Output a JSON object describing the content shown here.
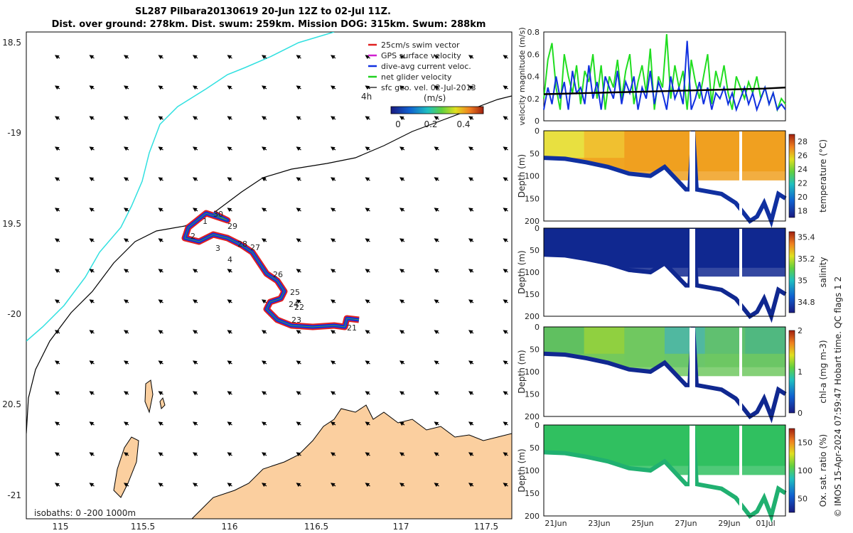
{
  "title_line1": "SL287 Pilbara20130619 20-Jun 12Z to 02-Jul 11Z.",
  "title_line2": "Dist. over ground: 278km. Dist. swum: 259km. Mission DOG: 315km. Swum: 288km",
  "map": {
    "lon_ticks": [
      "115",
      "115.5",
      "116",
      "116.5",
      "117",
      "117.5"
    ],
    "lat_ticks": [
      "18.5",
      "-19",
      "19.5",
      "-20",
      "20.5",
      "-21"
    ],
    "isobath_label": "isobaths: 0 -200 1000m",
    "legend": [
      {
        "label": "25cm/s swim vector",
        "color": "#e02020"
      },
      {
        "label": "GPS surface velocity",
        "color": "#d020d0"
      },
      {
        "label": "dive-avg current veloc.",
        "color": "#1030e0"
      },
      {
        "label": "net glider velocity",
        "color": "#20d020"
      },
      {
        "label": "sfc geo. vel. 02-Jul-2013",
        "color": "#000000"
      }
    ],
    "hours_label": "4h",
    "colorbar_unit": "(m/s)",
    "colorbar_ticks": [
      "0",
      "0.2",
      "0.4"
    ],
    "day_labels": [
      "30",
      "29",
      "1",
      "2",
      "3",
      "28",
      "27",
      "4",
      "26",
      "25",
      "24",
      "22",
      "23",
      "21"
    ],
    "land_color": "#fbcf9f"
  },
  "chart_data": [
    {
      "type": "line",
      "ylabel": "velocity magnitude (m/s)",
      "ylim": [
        0,
        0.8
      ],
      "yticks": [
        "0",
        "0.2",
        "0.4",
        "0.6",
        "0.8"
      ],
      "series": [
        {
          "color": "#20dd20",
          "values": [
            0.2,
            0.55,
            0.7,
            0.3,
            0.1,
            0.6,
            0.4,
            0.25,
            0.5,
            0.15,
            0.45,
            0.35,
            0.6,
            0.2,
            0.5,
            0.1,
            0.4,
            0.3,
            0.55,
            0.2,
            0.45,
            0.6,
            0.15,
            0.35,
            0.5,
            0.25,
            0.65,
            0.1,
            0.4,
            0.3,
            0.78,
            0.2,
            0.5,
            0.3,
            0.45,
            0.1,
            0.55,
            0.35,
            0.2,
            0.4,
            0.6,
            0.15,
            0.45,
            0.3,
            0.5,
            0.25,
            0.1,
            0.4,
            0.3,
            0.2,
            0.35,
            0.25,
            0.4,
            0.2,
            0.3,
            0.15,
            0.25,
            0.1,
            0.2,
            0.15
          ]
        },
        {
          "color": "#1030e0",
          "values": [
            0.1,
            0.3,
            0.15,
            0.4,
            0.2,
            0.35,
            0.1,
            0.45,
            0.25,
            0.3,
            0.15,
            0.5,
            0.2,
            0.35,
            0.1,
            0.4,
            0.3,
            0.2,
            0.45,
            0.15,
            0.35,
            0.25,
            0.4,
            0.1,
            0.3,
            0.2,
            0.45,
            0.15,
            0.35,
            0.25,
            0.1,
            0.4,
            0.2,
            0.3,
            0.15,
            0.72,
            0.1,
            0.2,
            0.35,
            0.15,
            0.3,
            0.1,
            0.25,
            0.2,
            0.3,
            0.15,
            0.25,
            0.1,
            0.2,
            0.3,
            0.15,
            0.25,
            0.1,
            0.2,
            0.3,
            0.15,
            0.25,
            0.1,
            0.15,
            0.1
          ]
        },
        {
          "color": "#000000",
          "values": [
            0.24,
            0.245,
            0.25,
            0.255,
            0.26,
            0.265,
            0.27,
            0.275,
            0.28,
            0.285,
            0.29,
            0.3
          ]
        }
      ]
    },
    {
      "type": "heatmap",
      "ylabel": "Depth (m)",
      "ylim": [
        200,
        0
      ],
      "yticks": [
        "0",
        "50",
        "100",
        "150",
        "200"
      ],
      "colorbar_label": "temperature (°C)",
      "colorbar_ticks": [
        "18",
        "20",
        "22",
        "24",
        "26",
        "28"
      ],
      "colorbar_range": [
        17,
        29
      ]
    },
    {
      "type": "heatmap",
      "ylabel": "Depth (m)",
      "ylim": [
        200,
        0
      ],
      "yticks": [
        "0",
        "50",
        "100",
        "150",
        "200"
      ],
      "colorbar_label": "salinity",
      "colorbar_ticks": [
        "34.8",
        "35",
        "35.2",
        "35.4"
      ],
      "colorbar_range": [
        34.7,
        35.45
      ]
    },
    {
      "type": "heatmap",
      "ylabel": "Depth (m)",
      "ylim": [
        200,
        0
      ],
      "yticks": [
        "0",
        "50",
        "100",
        "150",
        "200"
      ],
      "colorbar_label": "chl-a (mg m-3)",
      "colorbar_ticks": [
        "0",
        "1",
        "2"
      ],
      "colorbar_range": [
        0,
        2
      ]
    },
    {
      "type": "heatmap",
      "ylabel": "Depth (m)",
      "ylim": [
        200,
        0
      ],
      "yticks": [
        "0",
        "50",
        "100",
        "150",
        "200"
      ],
      "colorbar_label": "Ox. sat. ratio (%)",
      "colorbar_ticks": [
        "50",
        "100",
        "150"
      ],
      "colorbar_range": [
        25,
        175
      ],
      "xticks": [
        "21Jun",
        "23Jun",
        "25Jun",
        "27Jun",
        "29Jun",
        "01Jul"
      ]
    }
  ],
  "footer_note": "© IMOS 15-Apr-2024 07:59:47 Hobart time. QC flags 1 2"
}
